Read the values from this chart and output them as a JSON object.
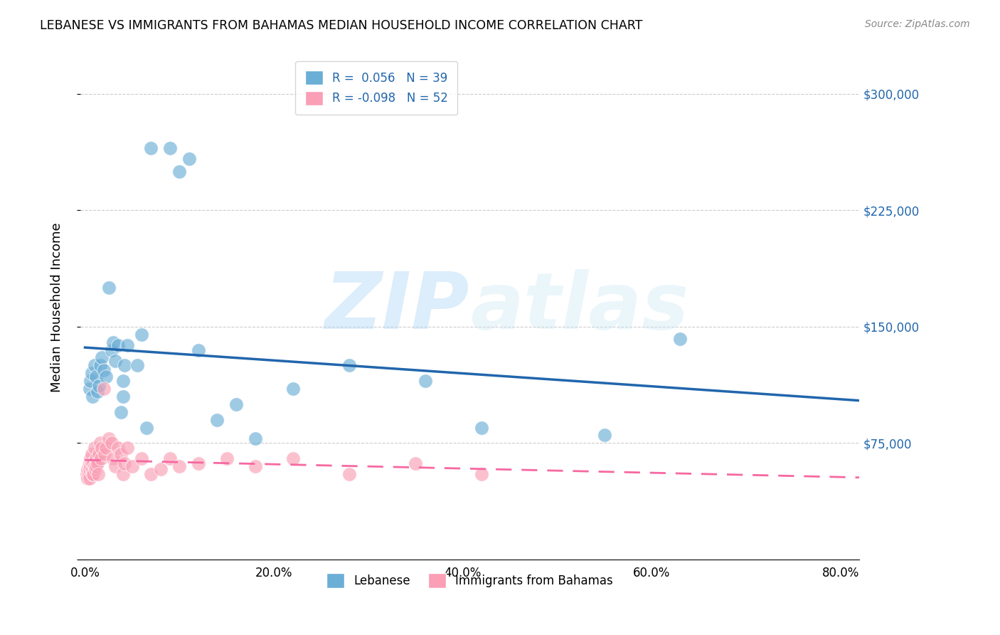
{
  "title": "LEBANESE VS IMMIGRANTS FROM BAHAMAS MEDIAN HOUSEHOLD INCOME CORRELATION CHART",
  "source": "Source: ZipAtlas.com",
  "xlabel_ticks": [
    "0.0%",
    "20.0%",
    "40.0%",
    "60.0%",
    "80.0%"
  ],
  "xlabel_tick_vals": [
    0.0,
    0.2,
    0.4,
    0.6,
    0.8
  ],
  "ylabel": "Median Household Income",
  "ytick_vals": [
    0,
    75000,
    150000,
    225000,
    300000
  ],
  "ytick_labels": [
    "",
    "$75,000",
    "$150,000",
    "$225,000",
    "$300,000"
  ],
  "xlim": [
    -0.005,
    0.82
  ],
  "ylim": [
    0,
    325000
  ],
  "blue_color": "#6baed6",
  "pink_color": "#fa9fb5",
  "blue_line_color": "#2166ac",
  "pink_line_color": "#f768a1",
  "legend_R1": "R =  0.056",
  "legend_N1": "N = 39",
  "legend_R2": "R = -0.098",
  "legend_N2": "N = 52",
  "label1": "Lebanese",
  "label2": "Immigrants from Bahamas",
  "watermark_zip": "ZIP",
  "watermark_atlas": "atlas",
  "blue_scatter_x": [
    0.005,
    0.006,
    0.007,
    0.008,
    0.01,
    0.012,
    0.013,
    0.015,
    0.016,
    0.018,
    0.02,
    0.022,
    0.025,
    0.028,
    0.03,
    0.032,
    0.035,
    0.038,
    0.04,
    0.04,
    0.042,
    0.045,
    0.055,
    0.06,
    0.065,
    0.07,
    0.09,
    0.1,
    0.11,
    0.12,
    0.14,
    0.16,
    0.18,
    0.22,
    0.28,
    0.36,
    0.42,
    0.55,
    0.63
  ],
  "blue_scatter_y": [
    110000,
    115000,
    120000,
    105000,
    125000,
    118000,
    108000,
    112000,
    125000,
    130000,
    122000,
    118000,
    175000,
    135000,
    140000,
    128000,
    138000,
    95000,
    115000,
    105000,
    125000,
    138000,
    125000,
    145000,
    85000,
    265000,
    265000,
    250000,
    258000,
    135000,
    90000,
    100000,
    78000,
    110000,
    125000,
    115000,
    85000,
    80000,
    142000
  ],
  "pink_scatter_x": [
    0.002,
    0.003,
    0.003,
    0.004,
    0.004,
    0.005,
    0.005,
    0.005,
    0.006,
    0.006,
    0.007,
    0.007,
    0.008,
    0.008,
    0.009,
    0.009,
    0.01,
    0.01,
    0.011,
    0.012,
    0.012,
    0.013,
    0.014,
    0.015,
    0.016,
    0.017,
    0.018,
    0.02,
    0.021,
    0.022,
    0.025,
    0.028,
    0.03,
    0.032,
    0.035,
    0.038,
    0.04,
    0.042,
    0.045,
    0.05,
    0.06,
    0.07,
    0.08,
    0.09,
    0.1,
    0.12,
    0.15,
    0.18,
    0.22,
    0.28,
    0.35,
    0.42
  ],
  "pink_scatter_y": [
    55000,
    58000,
    52000,
    60000,
    55000,
    62000,
    58000,
    52000,
    65000,
    60000,
    68000,
    62000,
    55000,
    58000,
    62000,
    55000,
    72000,
    60000,
    58000,
    65000,
    60000,
    62000,
    55000,
    68000,
    75000,
    65000,
    72000,
    110000,
    68000,
    72000,
    78000,
    75000,
    65000,
    60000,
    72000,
    68000,
    55000,
    62000,
    72000,
    60000,
    65000,
    55000,
    58000,
    65000,
    60000,
    62000,
    65000,
    60000,
    65000,
    55000,
    62000,
    55000
  ]
}
